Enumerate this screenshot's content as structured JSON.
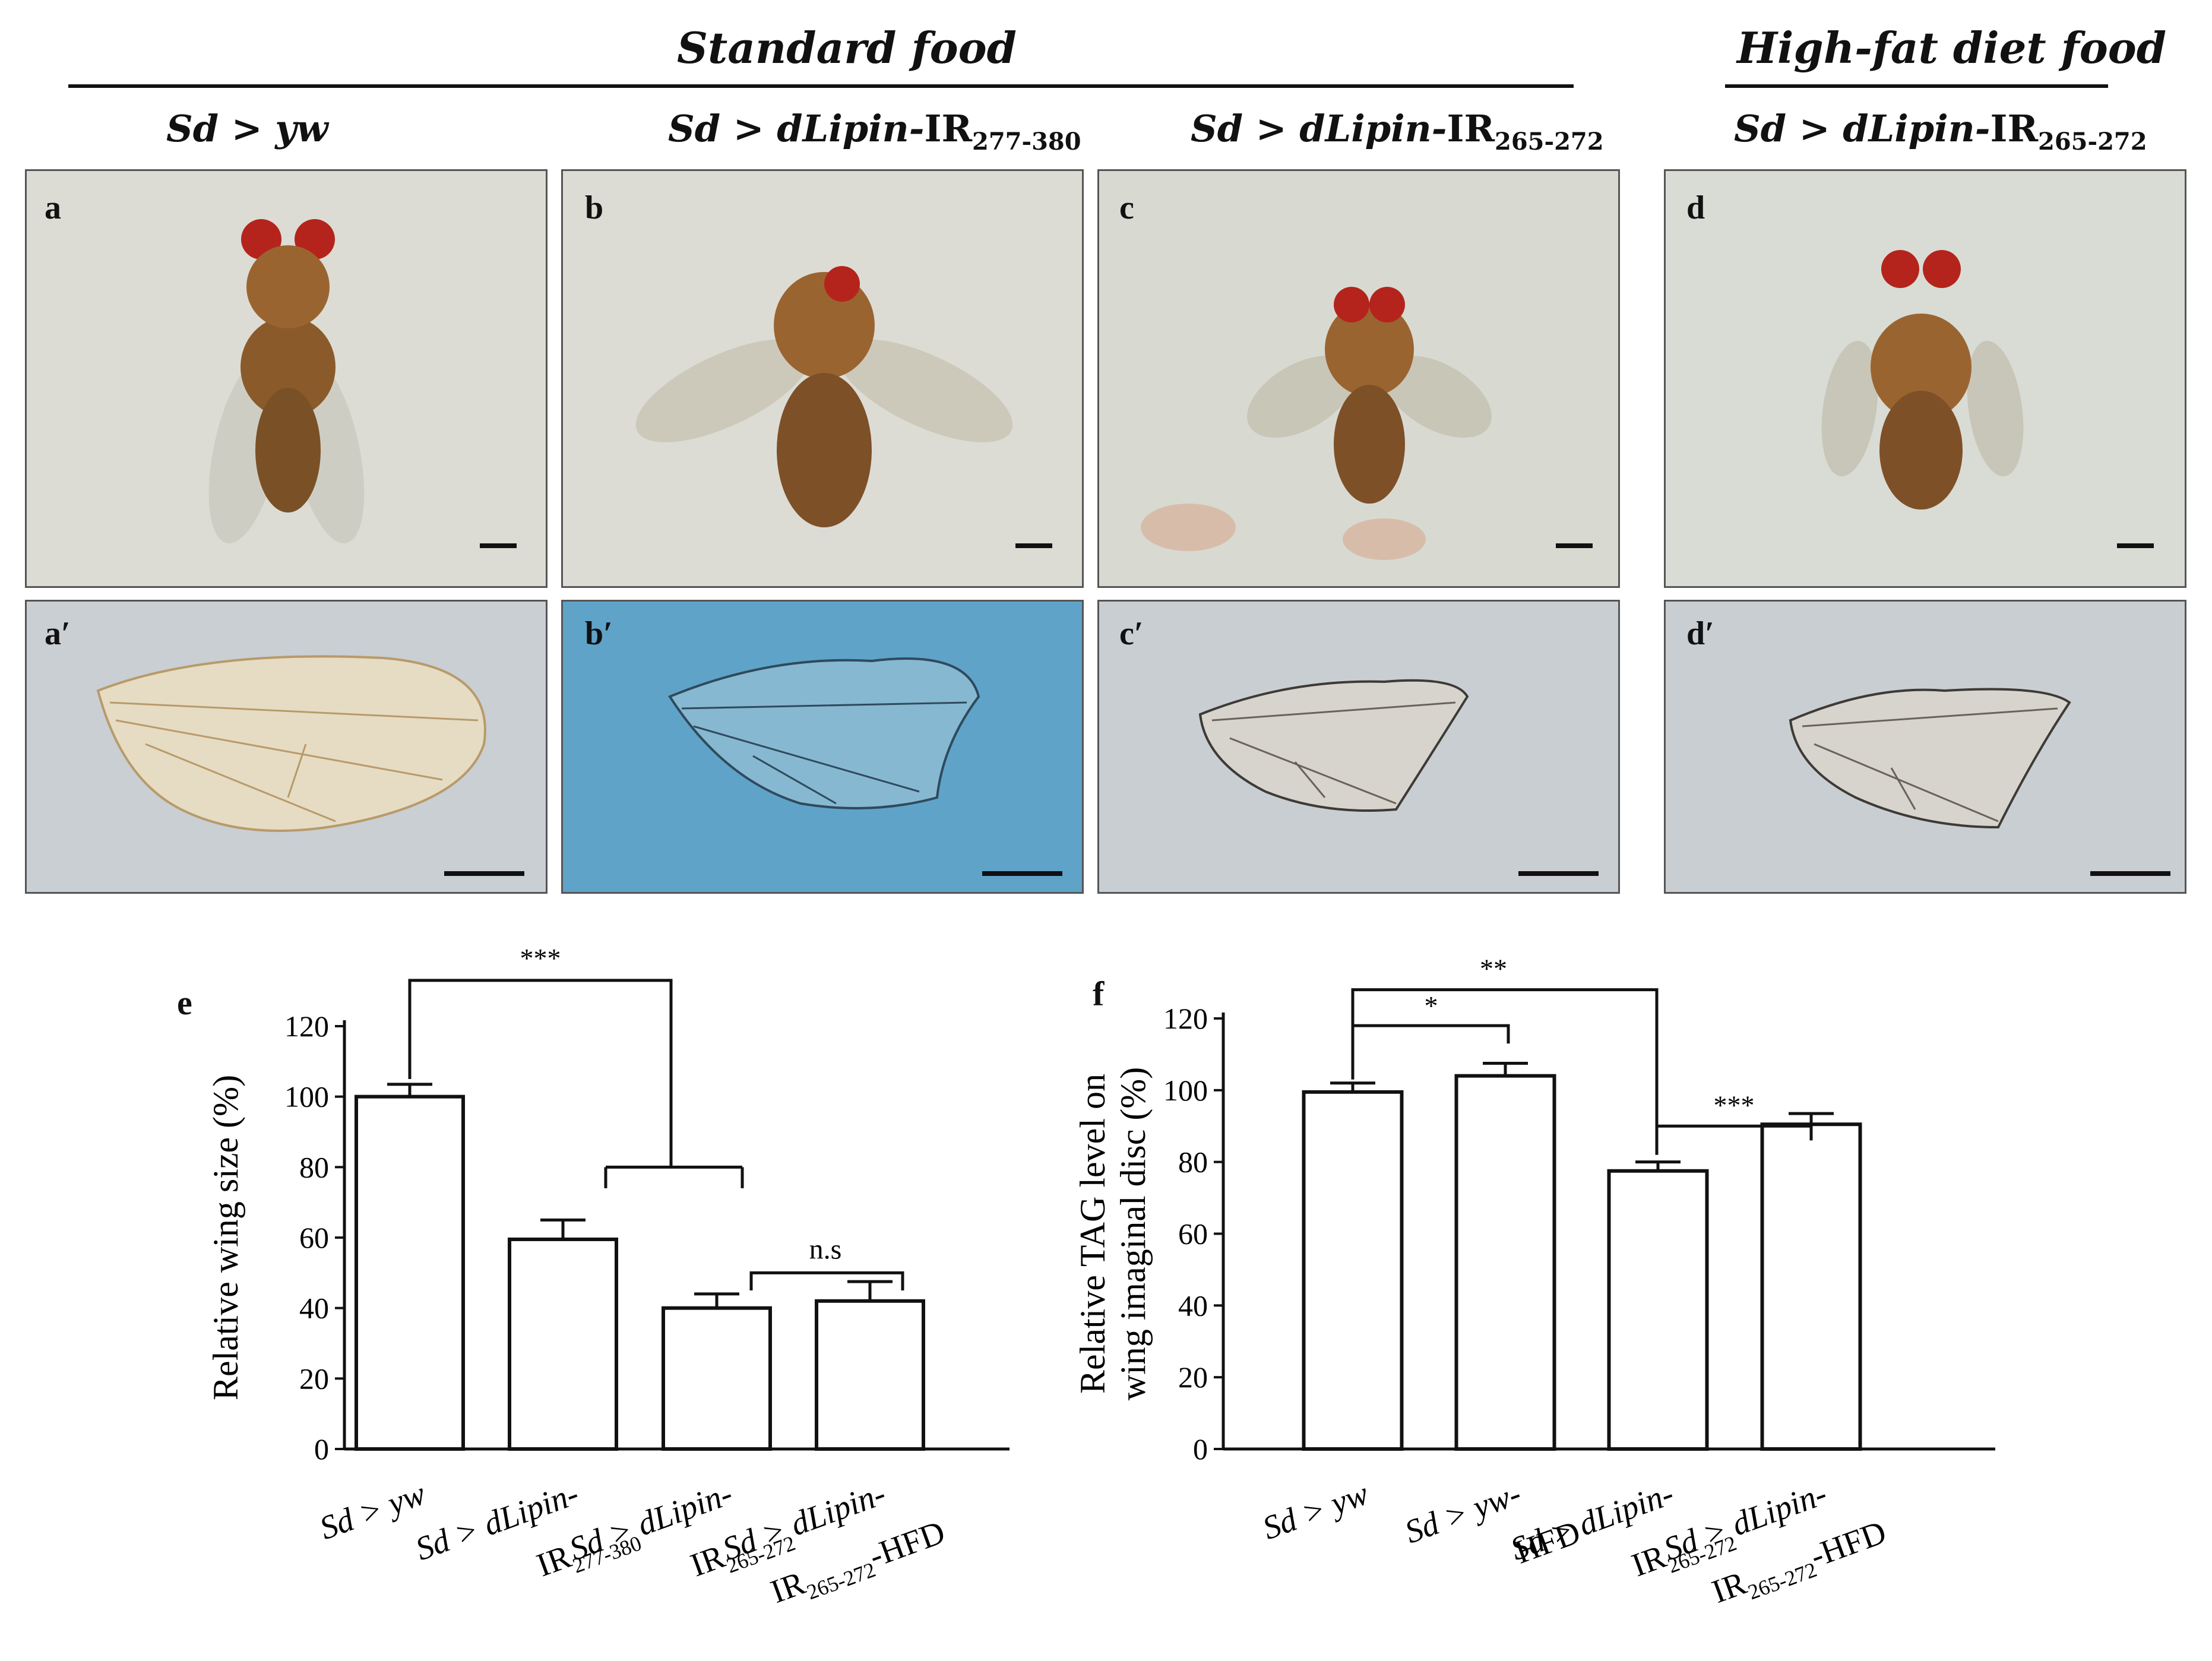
{
  "headers": {
    "standard": "Standard food",
    "hfd": "High-fat diet food"
  },
  "genotypes": {
    "g1": {
      "a": "Sd > yw"
    },
    "g2": {
      "a": "Sd > dLipin-",
      "ir": "IR",
      "sub": "277-380"
    },
    "g3": {
      "a": "Sd > dLipin-",
      "ir": "IR",
      "sub": "265-272"
    },
    "g4": {
      "a": "Sd > dLipin-",
      "ir": "IR",
      "sub": "265-272"
    }
  },
  "panels": {
    "a": "a",
    "b": "b",
    "c": "c",
    "d": "d",
    "a2": "a′",
    "b2": "b′",
    "c2": "c′",
    "d2": "d′"
  },
  "colors": {
    "bg_fly": "#d9dcd6",
    "bg_wing_grey": "#c9cfd3",
    "bg_wing_blue": "#5fa3c8",
    "fly_body": "#8a5a2a",
    "fly_eye": "#b4241c"
  },
  "chart_data": [
    {
      "panel": "e",
      "type": "bar",
      "ylabel": "Relative wing size (%)",
      "ylim": [
        0,
        120
      ],
      "yticks": [
        0,
        20,
        40,
        60,
        80,
        100,
        120
      ],
      "categories": [
        {
          "l1": "Sd > yw",
          "l2": "",
          "sub": "",
          "suffix": ""
        },
        {
          "l1": "Sd > dLipin-",
          "l2": "IR",
          "sub": "277-380",
          "suffix": ""
        },
        {
          "l1": "Sd > dLipin-",
          "l2": "IR",
          "sub": "265-272",
          "suffix": ""
        },
        {
          "l1": "Sd > dLipin-",
          "l2": "IR",
          "sub": "265-272",
          "suffix": "-HFD"
        }
      ],
      "values": [
        100,
        59.5,
        40,
        42
      ],
      "errors": [
        3.5,
        5.5,
        4,
        5.5
      ],
      "annotations": [
        "***",
        "n.s"
      ]
    },
    {
      "panel": "f",
      "type": "bar",
      "ylabel_lines": [
        "Relative TAG level on",
        "wing imaginal disc (%)"
      ],
      "ylim": [
        0,
        120
      ],
      "yticks": [
        0,
        20,
        40,
        60,
        80,
        100,
        120
      ],
      "categories": [
        {
          "l1": "Sd > yw",
          "l2": "",
          "sub": "",
          "suffix": ""
        },
        {
          "l1": "Sd > yw-",
          "l2": "HFD",
          "sub": "",
          "suffix": ""
        },
        {
          "l1": "Sd > dLipin-",
          "l2": "IR",
          "sub": "265-272",
          "suffix": ""
        },
        {
          "l1": "Sd > dLipin-",
          "l2": "IR",
          "sub": "265-272",
          "suffix": "-HFD"
        }
      ],
      "values": [
        99.5,
        104,
        77.5,
        90.5
      ],
      "errors": [
        2.5,
        3.5,
        2.5,
        3
      ],
      "annotations": [
        "*",
        "**",
        "***"
      ]
    }
  ]
}
